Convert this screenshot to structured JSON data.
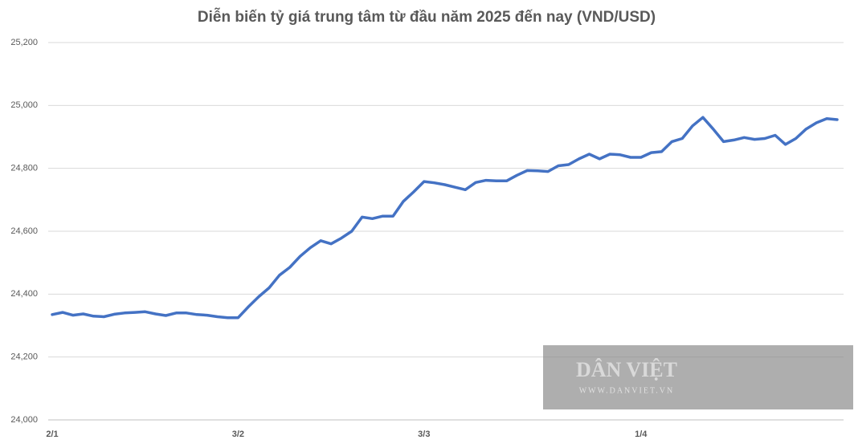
{
  "chart_data": {
    "type": "line",
    "title": "Diễn biến tỷ giá trung tâm từ đầu năm 2025 đến nay (VND/USD)",
    "categories": [
      "2/1",
      null,
      null,
      null,
      null,
      null,
      null,
      null,
      null,
      null,
      null,
      null,
      null,
      null,
      null,
      null,
      null,
      null,
      "3/2",
      null,
      null,
      null,
      null,
      null,
      null,
      null,
      null,
      null,
      null,
      null,
      null,
      null,
      null,
      null,
      null,
      null,
      "3/3",
      null,
      null,
      null,
      null,
      null,
      null,
      null,
      null,
      null,
      null,
      null,
      null,
      null,
      null,
      null,
      null,
      null,
      null,
      null,
      null,
      "1/4",
      null,
      null,
      null,
      null,
      null,
      null,
      null,
      null,
      null,
      null,
      null,
      null,
      null,
      null,
      null,
      null,
      null,
      null,
      null
    ],
    "series": [
      {
        "name": "VND/USD",
        "color": "#4472c4",
        "values": [
          24335,
          24342,
          24333,
          24337,
          24330,
          24328,
          24336,
          24340,
          24342,
          24344,
          24337,
          24332,
          24340,
          24340,
          24335,
          24333,
          24328,
          24325,
          24325,
          24360,
          24392,
          24420,
          24460,
          24485,
          24520,
          24548,
          24570,
          24560,
          24578,
          24600,
          24645,
          24640,
          24648,
          24648,
          24695,
          24725,
          24758,
          24754,
          24748,
          24740,
          24732,
          24755,
          24762,
          24760,
          24760,
          24778,
          24793,
          24792,
          24790,
          24808,
          24812,
          24830,
          24845,
          24830,
          24845,
          24843,
          24835,
          24835,
          24850,
          24853,
          24885,
          24895,
          24935,
          24962,
          24925,
          24885,
          24890,
          24898,
          24892,
          24895,
          24905,
          24876,
          24895,
          24925,
          24945,
          24958,
          24955
        ]
      }
    ],
    "ylim": [
      24000,
      25200
    ],
    "yticks": [
      {
        "value": 24000,
        "label": "24,000"
      },
      {
        "value": 24200,
        "label": "24,200"
      },
      {
        "value": 24400,
        "label": "24,400"
      },
      {
        "value": 24600,
        "label": "24,600"
      },
      {
        "value": 24800,
        "label": "24,800"
      },
      {
        "value": 25000,
        "label": "25,000"
      },
      {
        "value": 25200,
        "label": "25,200"
      }
    ],
    "grid": true,
    "watermark": {
      "brand": "DÂN VIỆT",
      "url": "WWW.DANVIET.VN"
    }
  }
}
